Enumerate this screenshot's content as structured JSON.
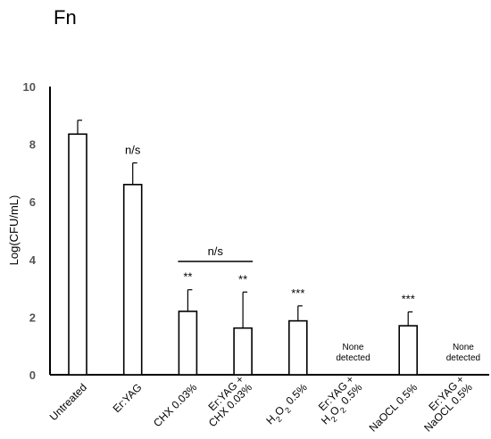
{
  "panel_label": "Fn",
  "chart_data": {
    "type": "bar",
    "ylabel": "Log(CFU/mL)",
    "ylim": [
      0,
      10
    ],
    "yticks": [
      "0",
      "2",
      "4",
      "6",
      "8",
      "10"
    ],
    "categories": [
      {
        "lines": [
          {
            "text": "Untreated"
          }
        ]
      },
      {
        "lines": [
          {
            "text": "Er:YAG"
          }
        ]
      },
      {
        "lines": [
          {
            "text": "CHX  0.03%"
          }
        ]
      },
      {
        "lines": [
          {
            "text": "Er:YAG +"
          },
          {
            "text": "CHX  0.03%"
          }
        ]
      },
      {
        "lines": [
          {
            "text": "H",
            "sub": "2",
            "rest": "O",
            "sub2": "2",
            "tail": " 0.5%"
          }
        ]
      },
      {
        "lines": [
          {
            "text": "Er:YAG +"
          },
          {
            "text": "H",
            "sub": "2",
            "rest": "O",
            "sub2": "2",
            "tail": " 0.5%"
          }
        ]
      },
      {
        "lines": [
          {
            "text": "NaOCL 0.5%"
          }
        ]
      },
      {
        "lines": [
          {
            "text": "Er:YAG +"
          },
          {
            "text": "NaOCL 0.5%"
          }
        ]
      }
    ],
    "values": [
      8.35,
      6.6,
      2.2,
      1.62,
      1.87,
      null,
      1.7,
      null
    ],
    "errors": [
      0.48,
      0.75,
      0.75,
      1.25,
      0.52,
      null,
      0.48,
      null
    ],
    "annotations": [
      "",
      "n/s",
      "**",
      "**",
      "***",
      "None detected",
      "***",
      "None detected"
    ],
    "bracket": {
      "from_category": 2,
      "to_category": 3,
      "label": "n/s"
    }
  }
}
